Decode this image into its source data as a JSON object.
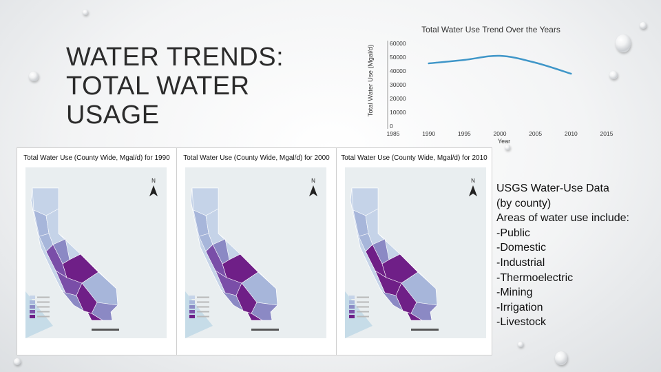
{
  "slide": {
    "title_lines": [
      "WATER TRENDS:",
      "TOTAL WATER",
      "USAGE"
    ],
    "accent_color": "#3f96c8"
  },
  "chart_data": {
    "type": "line",
    "title": "Total Water Use Trend Over the Years",
    "xlabel": "Year",
    "ylabel": "Total Water Use (Mgal/d)",
    "x_ticks": [
      1985,
      1990,
      1995,
      2000,
      2005,
      2010,
      2015
    ],
    "y_ticks": [
      0,
      10000,
      20000,
      30000,
      40000,
      50000,
      60000
    ],
    "xlim": [
      1985,
      2015
    ],
    "ylim": [
      0,
      60000
    ],
    "grid": false,
    "series": [
      {
        "color": "#3f96c8",
        "x": [
          1990,
          1995,
          2000,
          2005,
          2010
        ],
        "y": [
          45500,
          48000,
          51000,
          46000,
          38000
        ]
      }
    ]
  },
  "maps": [
    {
      "title": "Total Water Use (County Wide, Mgal/d) for 1990",
      "north": "N"
    },
    {
      "title": "Total Water Use (County Wide, Mgal/d) for 2000",
      "north": "N"
    },
    {
      "title": "Total Water Use (County Wide, Mgal/d) for 2010",
      "north": "N"
    }
  ],
  "info": {
    "lines": [
      "USGS Water-Use Data",
      "(by county)",
      "Areas of water use include:",
      "-Public",
      "-Domestic",
      "-Industrial",
      "-Thermoelectric",
      "-Mining",
      "-Irrigation",
      "-Livestock"
    ]
  },
  "map_palette": [
    "#c5d3e8",
    "#a7b6da",
    "#8b89c4",
    "#7a4ea8",
    "#6f1f87"
  ]
}
